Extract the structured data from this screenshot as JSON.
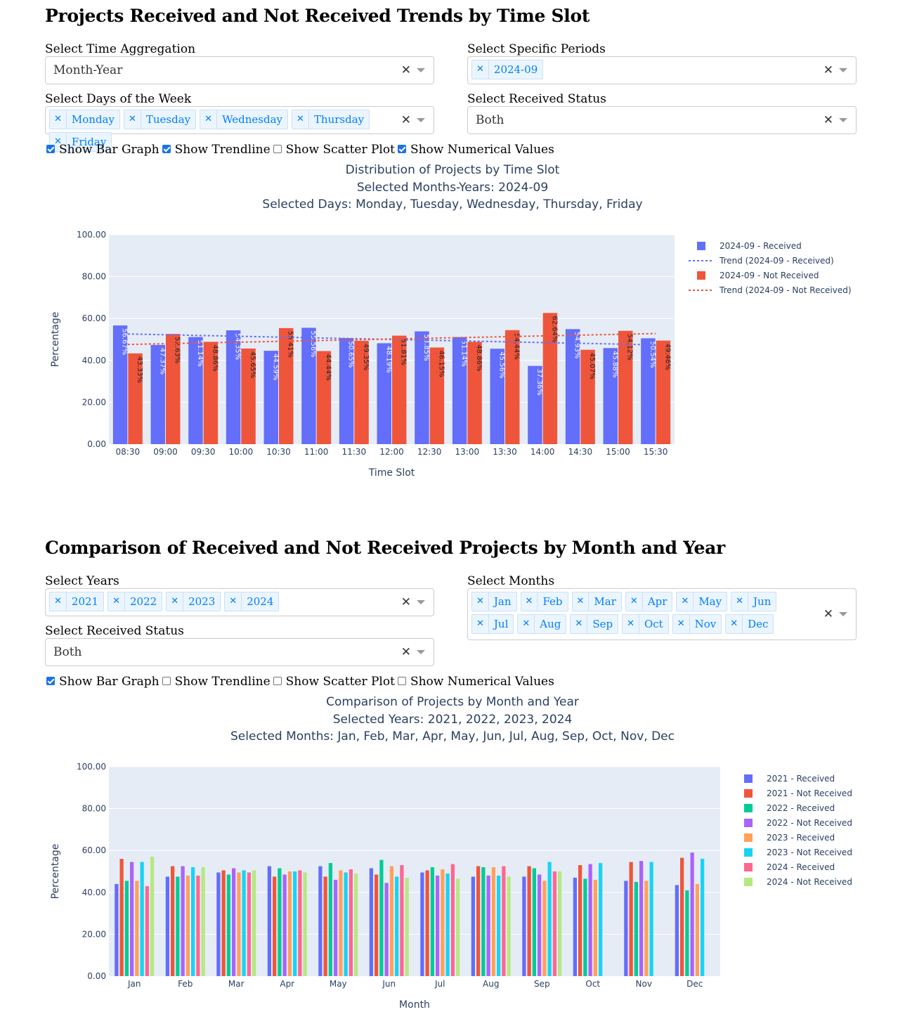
{
  "section1": {
    "title": "Projects Received and Not Received Trends by Time Slot",
    "agg_label": "Select Time Aggregation",
    "agg_value": "Month-Year",
    "periods_label": "Select Specific Periods",
    "periods": [
      "2024-09"
    ],
    "days_label": "Select Days of the Week",
    "days": [
      "Monday",
      "Tuesday",
      "Wednesday",
      "Thursday",
      "Friday"
    ],
    "status_label": "Select Received Status",
    "status_value": "Both",
    "checkboxes": [
      {
        "label": "Show Bar Graph",
        "checked": true
      },
      {
        "label": "Show Trendline",
        "checked": true
      },
      {
        "label": "Show Scatter Plot",
        "checked": false
      },
      {
        "label": "Show Numerical Values",
        "checked": true
      }
    ]
  },
  "section2": {
    "title": "Comparison of Received and Not Received Projects by Month and Year",
    "years_label": "Select Years",
    "years": [
      "2021",
      "2022",
      "2023",
      "2024"
    ],
    "months_label": "Select Months",
    "months": [
      "Jan",
      "Feb",
      "Mar",
      "Apr",
      "May",
      "Jun",
      "Jul",
      "Aug",
      "Sep",
      "Oct",
      "Nov",
      "Dec"
    ],
    "status_label": "Select Received Status",
    "status_value": "Both",
    "checkboxes": [
      {
        "label": "Show Bar Graph",
        "checked": true
      },
      {
        "label": "Show Trendline",
        "checked": false
      },
      {
        "label": "Show Scatter Plot",
        "checked": false
      },
      {
        "label": "Show Numerical Values",
        "checked": false
      }
    ]
  },
  "icons": {
    "clear": "clear-x-icon",
    "arrow": "caret-down-icon",
    "remove_tag": "remove-x-icon"
  },
  "chart_data": [
    {
      "type": "bar",
      "title": "Distribution of Projects by Time Slot",
      "subtitle_lines": [
        "Selected Months-Years: 2024-09",
        "Selected Days: Monday, Tuesday, Wednesday, Thursday, Friday"
      ],
      "xlabel": "Time Slot",
      "ylabel": "Percentage",
      "ylim": [
        0,
        100
      ],
      "yticks": [
        "0.00",
        "20.00",
        "40.00",
        "60.00",
        "80.00",
        "100.00"
      ],
      "categories": [
        "08:30",
        "09:00",
        "09:30",
        "10:00",
        "10:30",
        "11:00",
        "11:30",
        "12:00",
        "12:30",
        "13:00",
        "13:30",
        "14:00",
        "14:30",
        "15:00",
        "15:30"
      ],
      "series": [
        {
          "name": "2024-09 - Received",
          "color": "#636efa",
          "values": [
            56.67,
            47.37,
            51.14,
            54.35,
            44.59,
            55.56,
            50.65,
            48.19,
            53.85,
            51.14,
            45.56,
            37.36,
            54.93,
            45.88,
            50.54
          ],
          "labels": [
            "56.67%",
            "47.37%",
            "51.14%",
            "54.35%",
            "44.59%",
            "55.56%",
            "50.65%",
            "48.19%",
            "53.85%",
            "51.14%",
            "45.56%",
            "37.36%",
            "54.93%",
            "45.88%",
            "50.54%"
          ]
        },
        {
          "name": "2024-09 - Not Received",
          "color": "#ef553b",
          "values": [
            43.33,
            52.63,
            48.86,
            45.65,
            55.41,
            44.44,
            49.35,
            51.81,
            46.15,
            48.86,
            54.44,
            62.64,
            45.07,
            54.12,
            49.46
          ],
          "labels": [
            "43.33%",
            "52.63%",
            "48.86%",
            "45.65%",
            "55.41%",
            "44.44%",
            "49.35%",
            "51.81%",
            "46.15%",
            "48.86%",
            "54.44%",
            "62.64%",
            "45.07%",
            "54.12%",
            "49.46%"
          ]
        }
      ],
      "trendlines": [
        {
          "name": "Trend (2024-09 - Received)",
          "color": "#636efa",
          "start": 52.6,
          "end": 47.4
        },
        {
          "name": "Trend (2024-09 - Not Received)",
          "color": "#ef553b",
          "start": 47.6,
          "end": 52.8
        }
      ],
      "legend_order": [
        "2024-09 - Received",
        "Trend (2024-09 - Received)",
        "2024-09 - Not Received",
        "Trend (2024-09 - Not Received)"
      ],
      "legend": "right",
      "grid": true
    },
    {
      "type": "bar",
      "title": "Comparison of Projects by Month and Year",
      "subtitle_lines": [
        "Selected Years: 2021, 2022, 2023, 2024",
        "Selected Months: Jan, Feb, Mar, Apr, May, Jun, Jul, Aug, Sep, Oct, Nov, Dec"
      ],
      "xlabel": "Month",
      "ylabel": "Percentage",
      "ylim": [
        0,
        100
      ],
      "yticks": [
        "0.00",
        "20.00",
        "40.00",
        "60.00",
        "80.00",
        "100.00"
      ],
      "categories": [
        "Jan",
        "Feb",
        "Mar",
        "Apr",
        "May",
        "Jun",
        "Jul",
        "Aug",
        "Sep",
        "Oct",
        "Nov",
        "Dec"
      ],
      "series": [
        {
          "name": "2021 - Received",
          "color": "#636efa",
          "values": [
            44,
            47.5,
            49.5,
            52.5,
            52.5,
            51.5,
            49.5,
            47.5,
            47.5,
            47,
            45.5,
            43.5
          ]
        },
        {
          "name": "2021 - Not Received",
          "color": "#ef553b",
          "values": [
            56,
            52.5,
            50.5,
            47.5,
            47.5,
            48.5,
            50.5,
            52.5,
            52.5,
            53,
            54.5,
            56.5
          ]
        },
        {
          "name": "2022 - Received",
          "color": "#00cc96",
          "values": [
            45.5,
            47.5,
            48.5,
            51.5,
            54,
            55.5,
            52,
            52,
            51.5,
            46.5,
            45,
            41
          ]
        },
        {
          "name": "2022 - Not Received",
          "color": "#ab63fa",
          "values": [
            54.5,
            52.5,
            51.5,
            48.5,
            46,
            44.5,
            48,
            48,
            48.5,
            53.5,
            55,
            59
          ]
        },
        {
          "name": "2023 - Received",
          "color": "#ffa15a",
          "values": [
            45.5,
            48,
            49.5,
            50,
            50.5,
            52.5,
            51,
            52,
            45.5,
            46,
            45.5,
            44
          ]
        },
        {
          "name": "2023 - Not Received",
          "color": "#19d3f3",
          "values": [
            54.5,
            52,
            50.5,
            50,
            49.5,
            47.5,
            49,
            48,
            54.5,
            54,
            54.5,
            56
          ]
        },
        {
          "name": "2024 - Received",
          "color": "#ff6692",
          "values": [
            43,
            48,
            49.5,
            50.5,
            51,
            53,
            53.5,
            52.5,
            50,
            null,
            null,
            null
          ]
        },
        {
          "name": "2024 - Not Received",
          "color": "#b6e880",
          "values": [
            57,
            52,
            50.5,
            49.5,
            49,
            47,
            46.5,
            47.5,
            50,
            null,
            null,
            null
          ]
        }
      ],
      "legend": "right",
      "grid": true
    }
  ]
}
